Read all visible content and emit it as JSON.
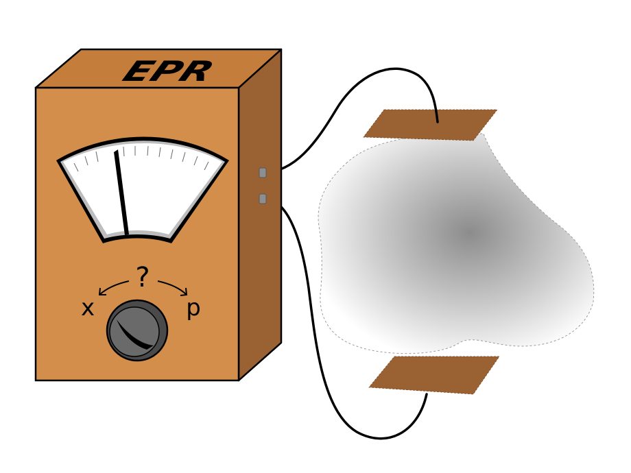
{
  "device": {
    "label": "EPR",
    "colors": {
      "front": "#d38e4c",
      "top": "#c47d3a",
      "side": "#9a6233",
      "outline": "#000000"
    }
  },
  "meter": {
    "needle_fraction": 0.35,
    "face_color": "#ffffff",
    "shadow_color": "#bdbdbd"
  },
  "dial": {
    "question": "?",
    "left_label": "x",
    "right_label": "p",
    "knob_color": "#5a5a5a"
  },
  "plates": {
    "color": "#9a6233"
  },
  "cloud": {
    "center_color": "#8c8c8c",
    "edge_color": "#ffffff"
  },
  "icons": [
    "meter-gauge-icon",
    "knob-icon",
    "arrow-left-icon",
    "arrow-right-icon"
  ]
}
